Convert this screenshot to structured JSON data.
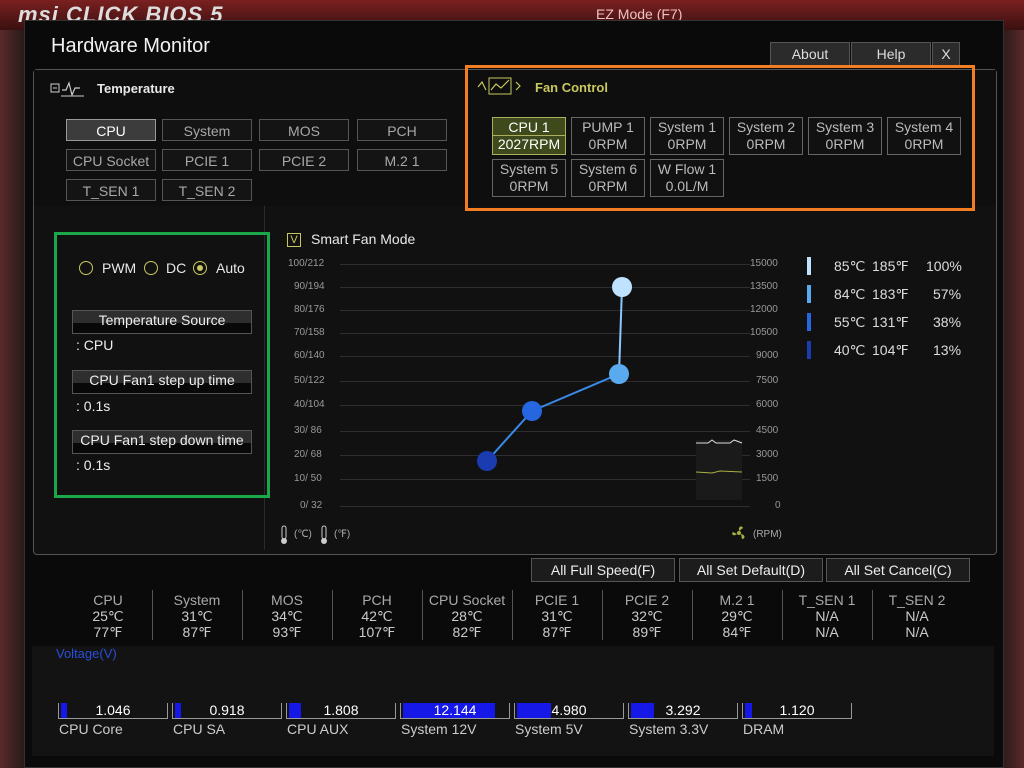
{
  "background": {
    "logo": "msi CLICK BIOS 5",
    "ez_mode": "EZ Mode (F7)"
  },
  "window": {
    "title": "Hardware Monitor"
  },
  "top_buttons": {
    "about": "About",
    "help": "Help",
    "close": "X"
  },
  "temperature": {
    "label": "Temperature",
    "sensors": [
      "CPU",
      "System",
      "MOS",
      "PCH",
      "CPU Socket",
      "PCIE 1",
      "PCIE 2",
      "M.2 1",
      "T_SEN 1",
      "T_SEN 2"
    ],
    "active": "CPU"
  },
  "fan_control": {
    "label": "Fan Control",
    "fans": [
      {
        "name": "CPU 1",
        "value": "2027RPM"
      },
      {
        "name": "PUMP 1",
        "value": "0RPM"
      },
      {
        "name": "System 1",
        "value": "0RPM"
      },
      {
        "name": "System 2",
        "value": "0RPM"
      },
      {
        "name": "System 3",
        "value": "0RPM"
      },
      {
        "name": "System 4",
        "value": "0RPM"
      },
      {
        "name": "System 5",
        "value": "0RPM"
      },
      {
        "name": "System 6",
        "value": "0RPM"
      },
      {
        "name": "W Flow 1",
        "value": "0.0L/M"
      }
    ]
  },
  "mode": {
    "pwm": "PWM",
    "dc": "DC",
    "auto": "Auto",
    "selected": "Auto"
  },
  "settings": {
    "temp_source_label": "Temperature Source",
    "temp_source_value": ": CPU",
    "step_up_label": "CPU Fan1 step up time",
    "step_up_value": ": 0.1s",
    "step_down_label": "CPU Fan1 step down time",
    "step_down_value": ": 0.1s"
  },
  "smart_fan": {
    "label": "Smart Fan Mode",
    "checked": true,
    "check_mark": "V",
    "left_axis": [
      "100/212",
      "90/194",
      "80/176",
      "70/158",
      "60/140",
      "50/122",
      "40/104",
      "30/ 86",
      "20/ 68",
      "10/ 50",
      "0/ 32"
    ],
    "right_axis": [
      "15000",
      "13500",
      "12000",
      "10500",
      "9000",
      "7500",
      "6000",
      "4500",
      "3000",
      "1500",
      "0"
    ],
    "unit_c": "(℃)",
    "unit_f": "(℉)",
    "unit_rpm": "(RPM)"
  },
  "legend": [
    {
      "c": "85℃",
      "f": "185℉",
      "pct": "100%",
      "color": "#bfe3ff"
    },
    {
      "c": "84℃",
      "f": "183℉",
      "pct": "57%",
      "color": "#5aaaf0"
    },
    {
      "c": "55℃",
      "f": "131℉",
      "pct": "38%",
      "color": "#2666e0"
    },
    {
      "c": "40℃",
      "f": "104℉",
      "pct": "13%",
      "color": "#1a3cb0"
    }
  ],
  "actions": {
    "full_speed": "All Full Speed(F)",
    "set_default": "All Set Default(D)",
    "set_cancel": "All Set Cancel(C)"
  },
  "temps": [
    {
      "name": "CPU",
      "c": "25℃",
      "f": "77℉"
    },
    {
      "name": "System",
      "c": "31℃",
      "f": "87℉"
    },
    {
      "name": "MOS",
      "c": "34℃",
      "f": "93℉"
    },
    {
      "name": "PCH",
      "c": "42℃",
      "f": "107℉"
    },
    {
      "name": "CPU Socket",
      "c": "28℃",
      "f": "82℉"
    },
    {
      "name": "PCIE 1",
      "c": "31℃",
      "f": "87℉"
    },
    {
      "name": "PCIE 2",
      "c": "32℃",
      "f": "89℉"
    },
    {
      "name": "M.2 1",
      "c": "29℃",
      "f": "84℉"
    },
    {
      "name": "T_SEN 1",
      "c": "N/A",
      "f": "N/A"
    },
    {
      "name": "T_SEN 2",
      "c": "N/A",
      "f": "N/A"
    }
  ],
  "voltage": {
    "label": "Voltage(V)",
    "items": [
      {
        "name": "CPU Core",
        "value": "1.046",
        "fill": 0.06
      },
      {
        "name": "CPU SA",
        "value": "0.918",
        "fill": 0.06
      },
      {
        "name": "CPU AUX",
        "value": "1.808",
        "fill": 0.12
      },
      {
        "name": "System 12V",
        "value": "12.144",
        "fill": 0.88
      },
      {
        "name": "System 5V",
        "value": "4.980",
        "fill": 0.33
      },
      {
        "name": "System 3.3V",
        "value": "3.292",
        "fill": 0.22
      },
      {
        "name": "DRAM",
        "value": "1.120",
        "fill": 0.07
      }
    ]
  }
}
